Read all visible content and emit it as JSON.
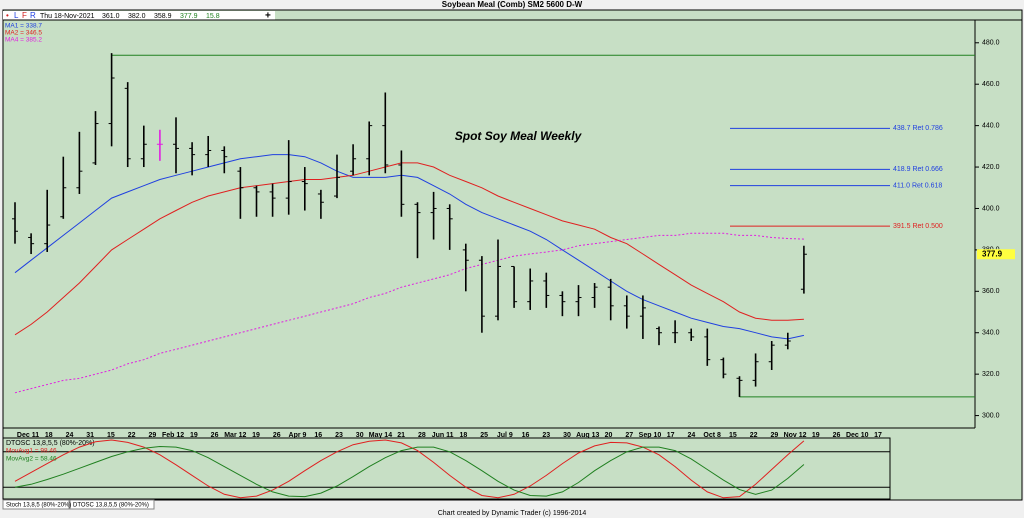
{
  "header": {
    "title": "Soybean Meal (Comb) SM2 5600 D-W",
    "toolbar": [
      "L",
      "F",
      "R"
    ],
    "info": [
      "Thu 18-Nov-2021",
      "361.0",
      "382.0",
      "358.9",
      "377.9",
      "15.8"
    ]
  },
  "chart_data": [
    {
      "type": "ohlc",
      "annotation": "Spot Soy Meal Weekly",
      "xtick_labels": [
        "Dec 11",
        "18",
        "24",
        "31",
        "15",
        "22",
        "29",
        "Feb 12",
        "19",
        "26",
        "Mar 12",
        "19",
        "26",
        "Apr 9",
        "16",
        "23",
        "30",
        "May 14",
        "21",
        "28",
        "Jun 11",
        "18",
        "25",
        "Jul 9",
        "16",
        "23",
        "30",
        "Aug 13",
        "20",
        "27",
        "Sep 10",
        "17",
        "24",
        "Oct 8",
        "15",
        "22",
        "29",
        "Nov 12",
        "19",
        "26",
        "Dec 10",
        "17"
      ],
      "open": [
        395,
        386,
        383,
        396,
        410,
        422,
        441,
        458,
        424,
        431,
        431,
        429,
        426,
        428,
        418,
        410,
        408,
        405,
        413,
        407,
        406,
        418,
        424,
        440,
        421,
        402,
        398,
        400,
        380,
        375,
        348,
        372,
        355,
        365,
        358,
        355,
        357,
        362,
        353,
        348,
        342,
        340,
        340,
        338,
        327,
        318,
        317,
        326,
        334,
        361
      ],
      "high": [
        403,
        388,
        409,
        425,
        437,
        447,
        475,
        461,
        440,
        438,
        444,
        432,
        435,
        430,
        420,
        411,
        412,
        433,
        420,
        409,
        426,
        431,
        442,
        456,
        428,
        403,
        408,
        402,
        383,
        377,
        385,
        372,
        371,
        369,
        360,
        363,
        364,
        366,
        358,
        358,
        343,
        346,
        342,
        342,
        328,
        319,
        330,
        336,
        340,
        382.0
      ],
      "low": [
        383,
        378,
        379,
        395,
        407,
        421,
        430,
        420,
        420,
        423,
        417,
        416,
        420,
        417,
        395,
        396,
        396,
        397,
        399,
        395,
        405,
        416,
        416,
        417,
        396,
        376,
        385,
        380,
        360,
        340,
        346,
        352,
        351,
        352,
        348,
        348,
        352,
        346,
        342,
        337,
        334,
        335,
        336,
        324,
        318,
        309,
        314,
        322,
        332,
        358.9
      ],
      "close": [
        389,
        383,
        392,
        410,
        418,
        441,
        463,
        424,
        431,
        431,
        429,
        426,
        428,
        425,
        410,
        408,
        405,
        413,
        412,
        403,
        415,
        424,
        440,
        421,
        402,
        398,
        400,
        395,
        375,
        348,
        372,
        355,
        365,
        358,
        355,
        357,
        362,
        353,
        348,
        352,
        340,
        340,
        338,
        327,
        320,
        317,
        326,
        334,
        336,
        377.9
      ],
      "bar_color": "#000000",
      "highlight_bar": 9,
      "highlight_color": "#e020e0",
      "series": [
        {
          "name": "MA1 = 338.7",
          "color": "#2040e0",
          "dashed": false,
          "values": [
            369,
            375,
            381,
            387,
            393,
            399,
            405,
            408,
            411,
            414,
            416,
            418,
            420,
            422,
            424,
            425,
            426,
            426,
            425,
            422,
            418,
            415,
            415,
            415,
            416,
            415,
            411,
            407,
            402,
            398,
            395,
            392,
            389,
            385,
            380,
            375,
            370,
            365,
            360,
            356,
            353,
            350,
            347,
            345,
            343,
            342,
            340,
            338,
            337,
            338.7
          ]
        },
        {
          "name": "MA2 = 346.5",
          "color": "#e02020",
          "dashed": false,
          "values": [
            339,
            344,
            350,
            357,
            364,
            372,
            380,
            385,
            390,
            395,
            399,
            403,
            406,
            408,
            410,
            411,
            412,
            413,
            414,
            414,
            415,
            416,
            418,
            420,
            422,
            422,
            420,
            416,
            413,
            410,
            406,
            403,
            400,
            397,
            394,
            392,
            390,
            386,
            383,
            378,
            373,
            368,
            363,
            359,
            355,
            350,
            347,
            346,
            346,
            346.5
          ]
        },
        {
          "name": "MA4 = 385.2",
          "color": "#e020e0",
          "dashed": true,
          "values": [
            311,
            313,
            315,
            317,
            318,
            320,
            322,
            325,
            327,
            330,
            332,
            334,
            336,
            338,
            340,
            342,
            344,
            346,
            348,
            350,
            352,
            354,
            357,
            359,
            362,
            364,
            366,
            368,
            371,
            373,
            375,
            377,
            378,
            379,
            380,
            382,
            383,
            384,
            385,
            386,
            387,
            387,
            388,
            388,
            388,
            387,
            387,
            386,
            385.5,
            385.2
          ]
        }
      ],
      "levels": [
        {
          "value": 438.7,
          "label": "438.7 Ret 0.786",
          "color": "#2040e0"
        },
        {
          "value": 418.9,
          "label": "418.9 Ret 0.666",
          "color": "#2040e0"
        },
        {
          "value": 411.0,
          "label": "411.0 Ret 0.618",
          "color": "#2040e0"
        },
        {
          "value": 391.5,
          "label": "391.5 Ret 0.500",
          "color": "#e02020"
        }
      ],
      "hlines": [
        {
          "value": 474,
          "start": 6,
          "color": "#208020"
        },
        {
          "value": 309,
          "start": 45,
          "color": "#208020"
        }
      ],
      "ylim": [
        294,
        491
      ],
      "yticks": [
        {
          "value": 300,
          "label": "300.0"
        },
        {
          "value": 320,
          "label": "320.0"
        },
        {
          "value": 340,
          "label": "340.0"
        },
        {
          "value": 360,
          "label": "360.0"
        },
        {
          "value": 380,
          "label": "380.0"
        },
        {
          "value": 400,
          "label": "400.0"
        },
        {
          "value": 420,
          "label": "420.0"
        },
        {
          "value": 440,
          "label": "440.0"
        },
        {
          "value": 460,
          "label": "460.0"
        },
        {
          "value": 480,
          "label": "480.0"
        }
      ]
    },
    {
      "type": "line",
      "title": "DTOSC 13,8,5,5 (80%-20%)",
      "series": [
        {
          "name": "MovAvg1 = 98.46",
          "color": "#e02020",
          "values": [
            30,
            45,
            60,
            75,
            88,
            97,
            100,
            96,
            88,
            75,
            58,
            40,
            22,
            8,
            2,
            5,
            15,
            30,
            48,
            65,
            80,
            92,
            98,
            100,
            95,
            82,
            62,
            40,
            20,
            6,
            2,
            8,
            22,
            40,
            60,
            78,
            90,
            96,
            95,
            88,
            75,
            55,
            32,
            12,
            2,
            4,
            25,
            50,
            75,
            98.46
          ]
        },
        {
          "name": "MovAvg2 = 58.46",
          "color": "#208020",
          "values": [
            20,
            25,
            33,
            42,
            52,
            62,
            72,
            80,
            86,
            89,
            88,
            82,
            70,
            55,
            40,
            25,
            12,
            5,
            4,
            10,
            22,
            38,
            55,
            70,
            82,
            88,
            88,
            80,
            65,
            48,
            30,
            15,
            6,
            5,
            12,
            28,
            48,
            65,
            80,
            88,
            88,
            82,
            68,
            50,
            32,
            16,
            8,
            15,
            35,
            58.46
          ]
        }
      ],
      "bands": [
        80,
        20
      ],
      "ylim": [
        0,
        100
      ]
    }
  ],
  "tabs": [
    "Stoch 13,8,5 (80%-20%)",
    "DTOSC 13,8,5,5 (80%-20%)"
  ],
  "footer": "Chart created by Dynamic Trader  (c) 1996-2014"
}
